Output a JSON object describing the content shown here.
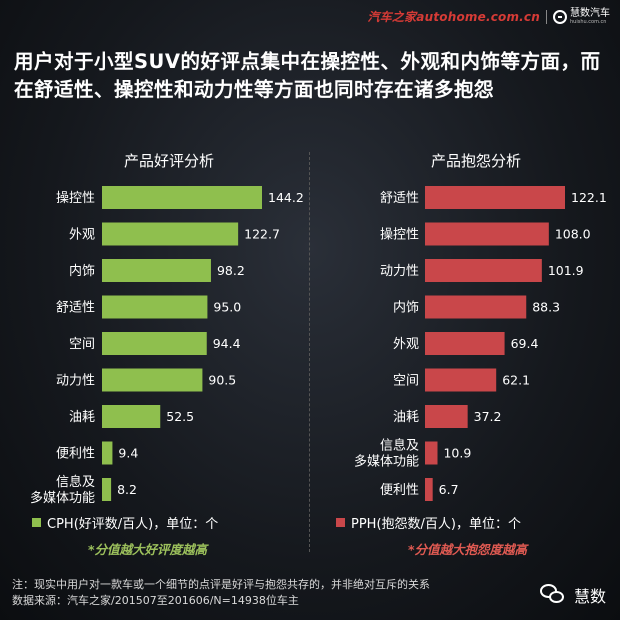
{
  "header": {
    "site": "汽车之家autohome.com.cn",
    "brand": "慧数汽车",
    "brand_sub": "huishu.com.cn"
  },
  "headline": "用户对于小型SUV的好评点集中在操控性、外观和内饰等方面，而在舒适性、操控性和动力性等方面也同时存在诸多抱怨",
  "chart_data": [
    {
      "type": "bar",
      "orientation": "horizontal",
      "title": "产品好评分析",
      "categories": [
        "操控性",
        "外观",
        "内饰",
        "舒适性",
        "空间",
        "动力性",
        "油耗",
        "便利性",
        "信息及多媒体功能"
      ],
      "category_lines": [
        [
          "操控性"
        ],
        [
          "外观"
        ],
        [
          "内饰"
        ],
        [
          "舒适性"
        ],
        [
          "空间"
        ],
        [
          "动力性"
        ],
        [
          "油耗"
        ],
        [
          "便利性"
        ],
        [
          "信息及",
          "多媒体功能"
        ]
      ],
      "values": [
        144.2,
        122.7,
        98.2,
        95.0,
        94.4,
        90.5,
        52.5,
        9.4,
        8.2
      ],
      "labels": [
        "144.2",
        "122.7",
        "98.2",
        "95.0",
        "94.4",
        "90.5",
        "52.5",
        "9.4",
        "8.2"
      ],
      "color": "#8fbf4e",
      "legend": "CPH(好评数/百人)，单位：个",
      "note": "*分值越大好评度越高"
    },
    {
      "type": "bar",
      "orientation": "horizontal",
      "title": "产品抱怨分析",
      "categories": [
        "舒适性",
        "操控性",
        "动力性",
        "内饰",
        "外观",
        "空间",
        "油耗",
        "信息及多媒体功能",
        "便利性"
      ],
      "category_lines": [
        [
          "舒适性"
        ],
        [
          "操控性"
        ],
        [
          "动力性"
        ],
        [
          "内饰"
        ],
        [
          "外观"
        ],
        [
          "空间"
        ],
        [
          "油耗"
        ],
        [
          "信息及",
          "多媒体功能"
        ],
        [
          "便利性"
        ]
      ],
      "values": [
        122.1,
        108.0,
        101.9,
        88.3,
        69.4,
        62.1,
        37.2,
        10.9,
        6.7
      ],
      "labels": [
        "122.1",
        "108.0",
        "101.9",
        "88.3",
        "69.4",
        "62.1",
        "37.2",
        "10.9",
        "6.7"
      ],
      "color": "#c9474a",
      "legend": "PPH(抱怨数/百人)，单位：个",
      "note": "*分值越大抱怨度越高"
    }
  ],
  "footer": {
    "line1": "注：现实中用户对一款车或一个细节的点评是好评与抱怨共存的，并非绝对互斥的关系",
    "line2": "数据来源：汽车之家/201507至201606/N=14938位车主"
  },
  "wechat": {
    "name": "慧数"
  }
}
